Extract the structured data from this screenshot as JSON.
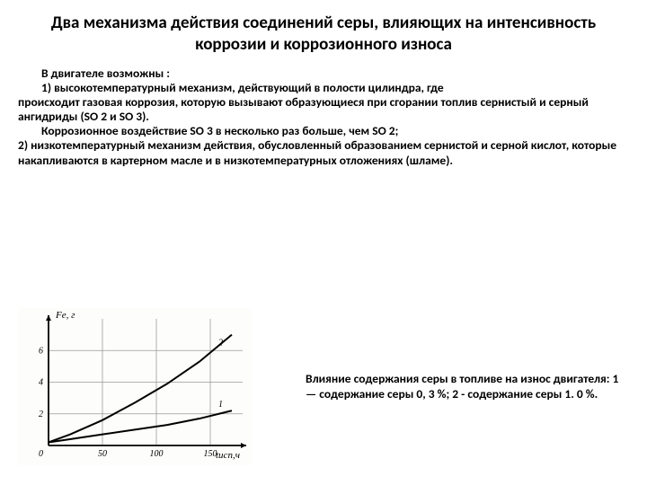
{
  "title": "Два механизма действия соединений серы, влияющих на интенсивность коррозии и коррозионного износа",
  "intro": "В двигателе возможны :",
  "item1_lead": "1)         высокотемпературный механизм, действующий в полости цилиндра, где",
  "item1_cont": "происходит газовая коррозия, которую вызывают образующиеся при сгорании топлив сернистый и серный ангидриды (SO 2 и SO 3).",
  "item1_note": "Коррозионное воздействие SO 3 в несколько раз больше, чем SO 2;",
  "item2": "2)  низкотемпературный механизм действия, обусловленный образованием сернистой и серной кислот, которые накапливаются в картерном масле и в низкотемпературных отложениях (шламе).",
  "caption": "Влияние содержания серы в топливе на износ двигателя: 1 — содержание серы 0, 3 %; 2 - содержание серы 1. 0 %.",
  "chart": {
    "type": "line",
    "y_label": "Fe, г",
    "x_label": "tисп,ч",
    "x_ticks": [
      0,
      50,
      100,
      150
    ],
    "y_ticks": [
      2,
      4,
      6
    ],
    "x_range": [
      0,
      180
    ],
    "y_range": [
      0,
      8
    ],
    "series": [
      {
        "label": "1",
        "points": [
          [
            0,
            0.2
          ],
          [
            20,
            0.4
          ],
          [
            50,
            0.7
          ],
          [
            80,
            1.0
          ],
          [
            110,
            1.3
          ],
          [
            140,
            1.7
          ],
          [
            170,
            2.2
          ]
        ],
        "stroke": "#000000",
        "width": 2
      },
      {
        "label": "2",
        "points": [
          [
            0,
            0.2
          ],
          [
            20,
            0.7
          ],
          [
            50,
            1.6
          ],
          [
            80,
            2.7
          ],
          [
            110,
            3.9
          ],
          [
            140,
            5.3
          ],
          [
            170,
            7.0
          ]
        ],
        "stroke": "#000000",
        "width": 2
      }
    ],
    "grid_color": "#9a9a9a",
    "axis_color": "#000000",
    "background": "#fdfdfb",
    "tick_font": 10,
    "label_font": 11
  }
}
